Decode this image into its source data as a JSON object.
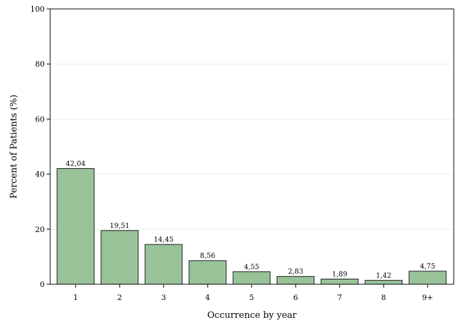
{
  "chart_data": {
    "type": "bar",
    "categories": [
      "1",
      "2",
      "3",
      "4",
      "5",
      "6",
      "7",
      "8",
      "9+"
    ],
    "values": [
      42.04,
      19.51,
      14.45,
      8.56,
      4.55,
      2.83,
      1.89,
      1.42,
      4.75
    ],
    "value_labels": [
      "42,04",
      "19,51",
      "14,45",
      "8,56",
      "4,55",
      "2,83",
      "1,89",
      "1,42",
      "4,75"
    ],
    "xlabel": "Occurrence by year",
    "ylabel": "Percent of Patients (%)",
    "ylim": [
      0,
      100
    ],
    "yticks": [
      "0",
      "20",
      "40",
      "60",
      "80",
      "100"
    ],
    "grid": true,
    "colors": {
      "bar_fill": "#99c298",
      "bar_stroke": "#1a1a1a",
      "grid": "#eeeeee",
      "axis": "#000000"
    }
  }
}
